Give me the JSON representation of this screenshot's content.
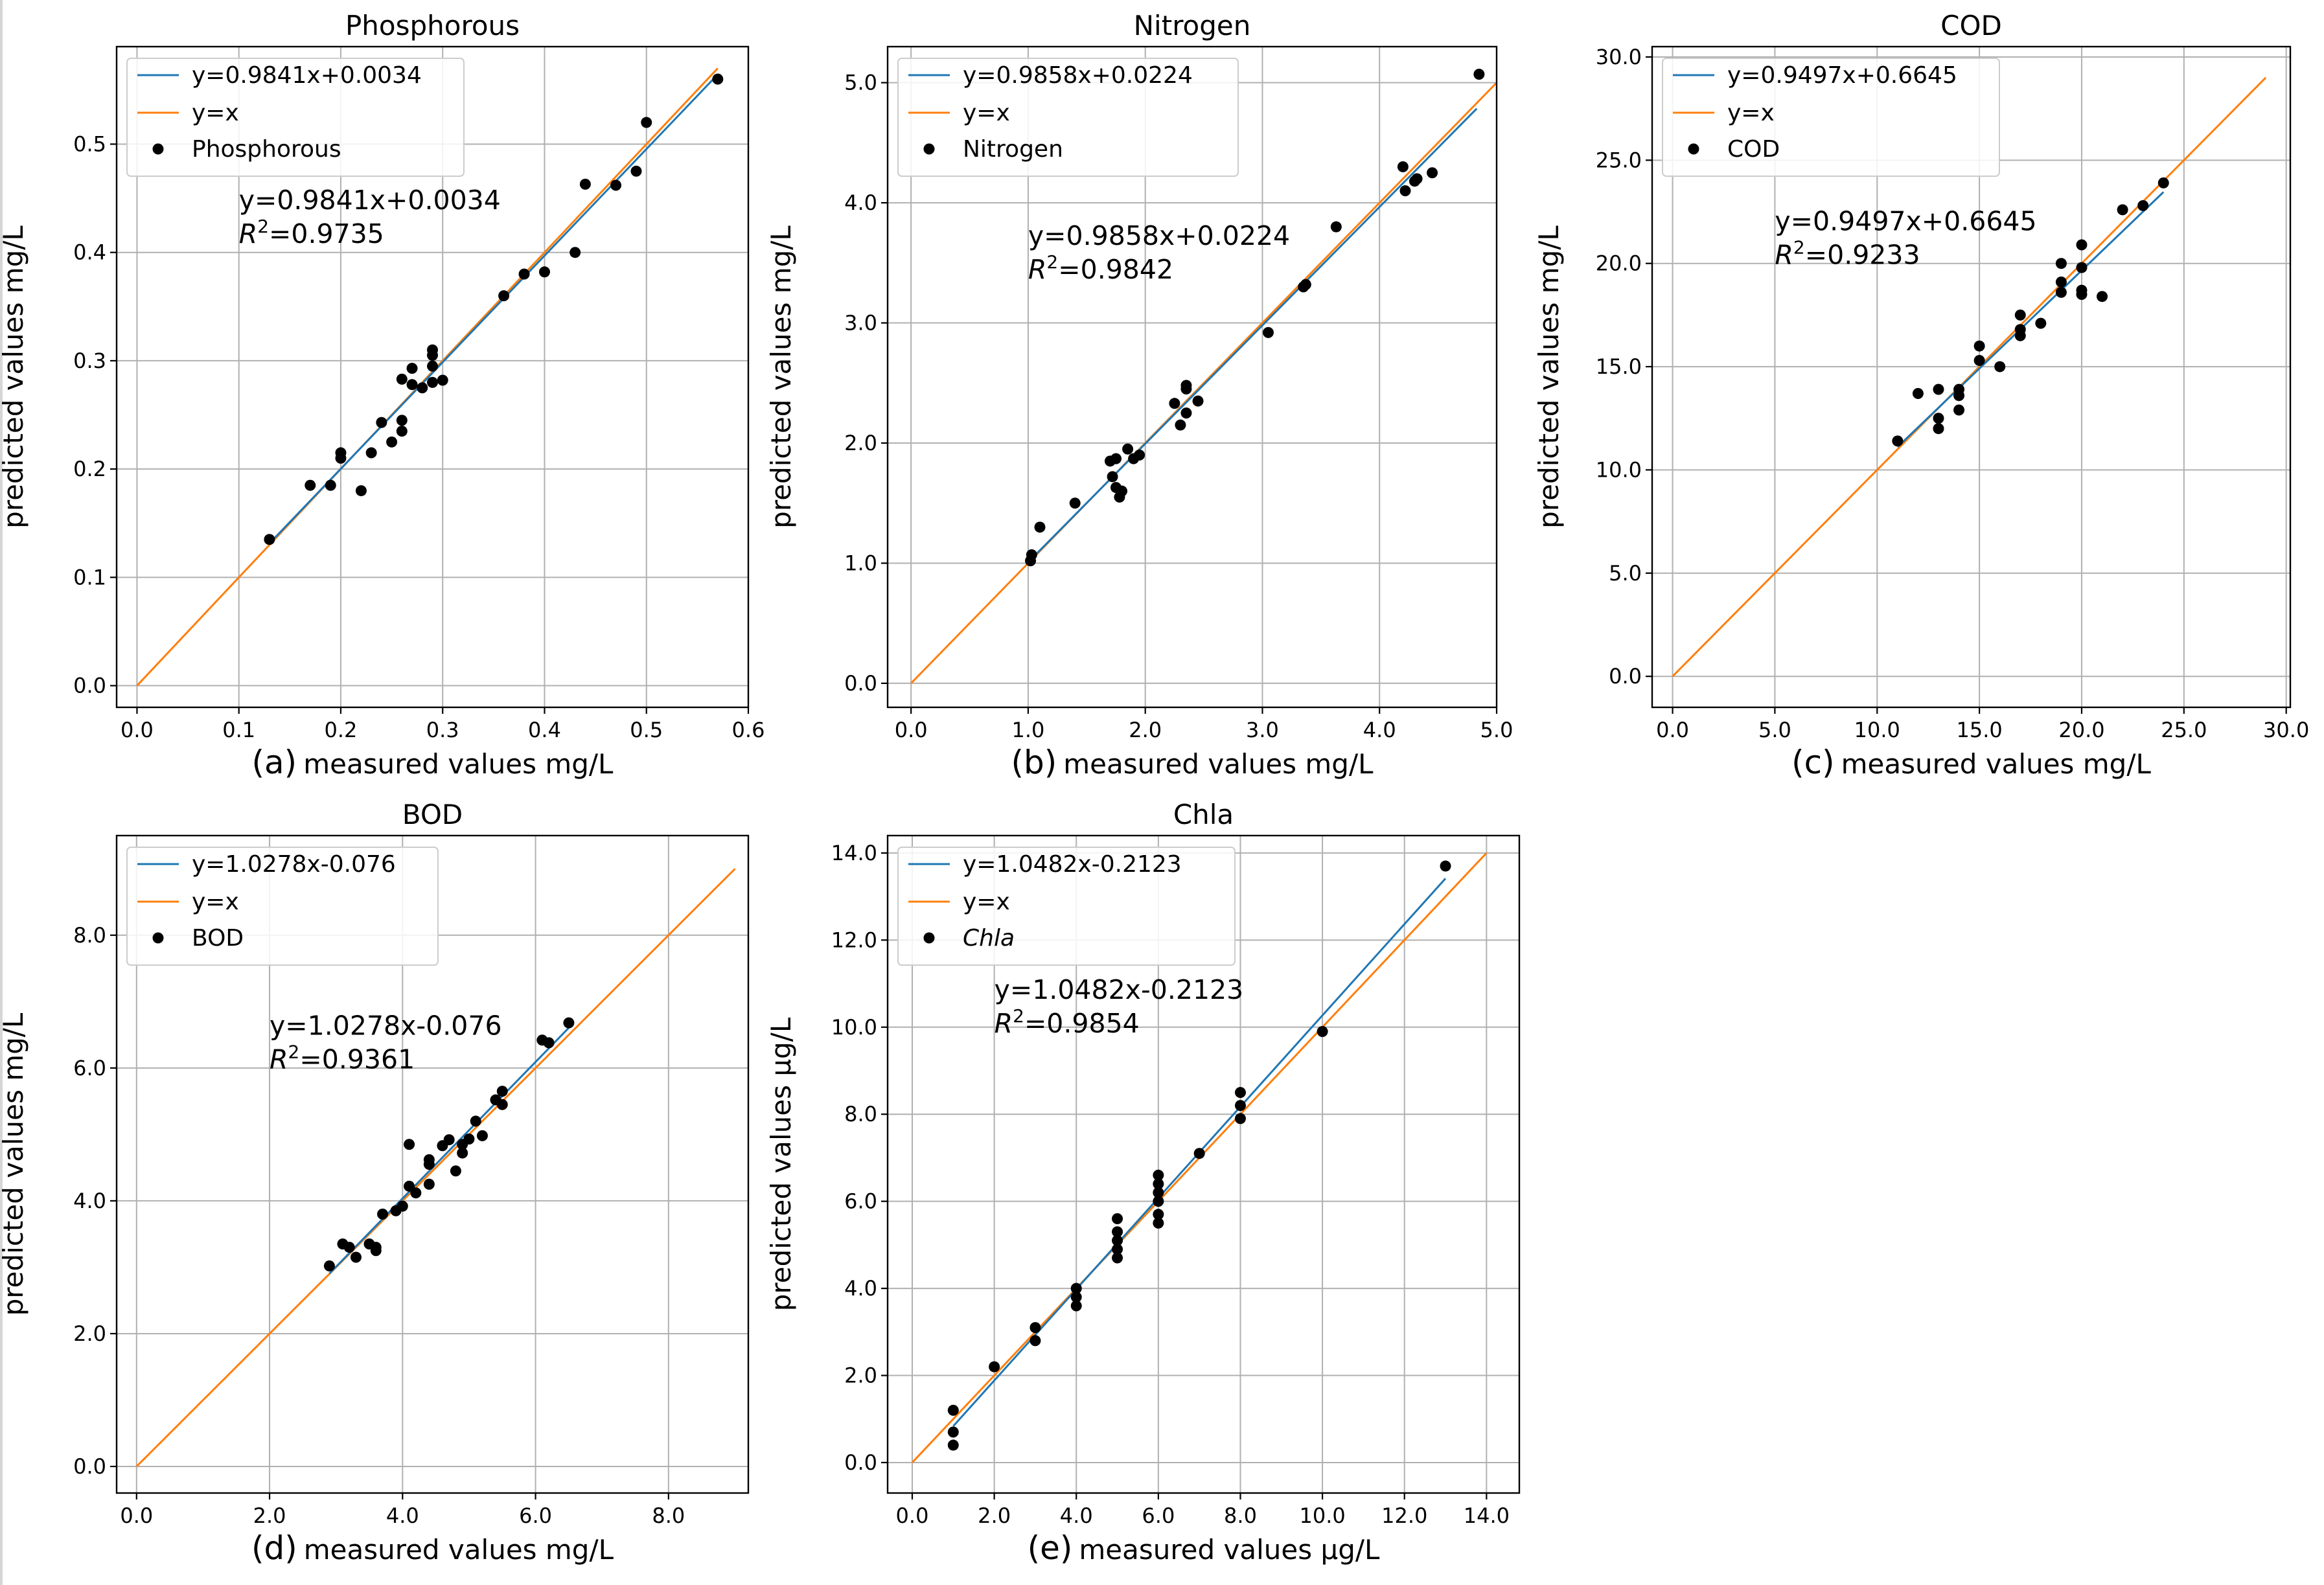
{
  "colors": {
    "fit": "#1f77b4",
    "identity": "#ff7f0e",
    "points": "#000000",
    "grid": "#b0b0b0"
  },
  "chart_data": [
    {
      "type": "scatter",
      "title": "Phosphorous",
      "panel_tag": "(a)",
      "xlabel": "measured values mg/L",
      "ylabel": "predicted values mg/L",
      "xlim": [
        -0.02,
        0.6
      ],
      "ylim": [
        -0.02,
        0.59
      ],
      "xticks": [
        0.0,
        0.1,
        0.2,
        0.3,
        0.4,
        0.5,
        0.6
      ],
      "yticks": [
        0.0,
        0.1,
        0.2,
        0.3,
        0.4,
        0.5
      ],
      "tick_decimals": 1,
      "legend": [
        "y=0.9841x+0.0034",
        "y=x",
        "Phosphorous"
      ],
      "legend_italic_points": false,
      "equation": "y=0.9841x+0.0034",
      "r2_prefix": "R",
      "r2_sup": "2",
      "r2_value": "=0.9735",
      "fit": {
        "slope": 0.9841,
        "intercept": 0.0034,
        "x_range": [
          0.13,
          0.57
        ]
      },
      "identity_range": [
        0,
        0.57
      ],
      "equation_anchor": [
        0.1,
        0.44
      ],
      "points": [
        [
          0.13,
          0.135
        ],
        [
          0.17,
          0.185
        ],
        [
          0.19,
          0.185
        ],
        [
          0.2,
          0.21
        ],
        [
          0.2,
          0.215
        ],
        [
          0.22,
          0.18
        ],
        [
          0.23,
          0.215
        ],
        [
          0.24,
          0.243
        ],
        [
          0.25,
          0.225
        ],
        [
          0.26,
          0.235
        ],
        [
          0.26,
          0.245
        ],
        [
          0.26,
          0.283
        ],
        [
          0.27,
          0.278
        ],
        [
          0.27,
          0.293
        ],
        [
          0.28,
          0.275
        ],
        [
          0.29,
          0.28
        ],
        [
          0.29,
          0.295
        ],
        [
          0.29,
          0.305
        ],
        [
          0.29,
          0.31
        ],
        [
          0.3,
          0.282
        ],
        [
          0.36,
          0.36
        ],
        [
          0.38,
          0.38
        ],
        [
          0.4,
          0.382
        ],
        [
          0.43,
          0.4
        ],
        [
          0.44,
          0.463
        ],
        [
          0.47,
          0.462
        ],
        [
          0.49,
          0.475
        ],
        [
          0.5,
          0.52
        ],
        [
          0.57,
          0.56
        ]
      ]
    },
    {
      "type": "scatter",
      "title": "Nitrogen",
      "panel_tag": "(b)",
      "xlabel": "measured values mg/L",
      "ylabel": "predicted values mg/L",
      "xlim": [
        -0.2,
        5.0
      ],
      "ylim": [
        -0.2,
        5.3
      ],
      "xticks": [
        0.0,
        1.0,
        2.0,
        3.0,
        4.0,
        5.0
      ],
      "yticks": [
        0.0,
        1.0,
        2.0,
        3.0,
        4.0,
        5.0
      ],
      "tick_decimals": 1,
      "legend": [
        "y=0.9858x+0.0224",
        "y=x",
        "Nitrogen"
      ],
      "legend_italic_points": false,
      "equation": "y=0.9858x+0.0224",
      "r2_prefix": "R",
      "r2_sup": "2",
      "r2_value": "=0.9842",
      "fit": {
        "slope": 0.9858,
        "intercept": 0.0224,
        "x_range": [
          1.02,
          4.83
        ]
      },
      "identity_range": [
        0,
        5.0
      ],
      "equation_anchor": [
        1.0,
        3.65
      ],
      "points": [
        [
          1.02,
          1.02
        ],
        [
          1.03,
          1.07
        ],
        [
          1.1,
          1.3
        ],
        [
          1.4,
          1.5
        ],
        [
          1.7,
          1.85
        ],
        [
          1.72,
          1.72
        ],
        [
          1.75,
          1.63
        ],
        [
          1.78,
          1.55
        ],
        [
          1.8,
          1.6
        ],
        [
          1.75,
          1.87
        ],
        [
          1.85,
          1.95
        ],
        [
          1.9,
          1.87
        ],
        [
          1.95,
          1.9
        ],
        [
          2.25,
          2.33
        ],
        [
          2.3,
          2.15
        ],
        [
          2.35,
          2.25
        ],
        [
          2.35,
          2.45
        ],
        [
          2.35,
          2.48
        ],
        [
          2.45,
          2.35
        ],
        [
          3.05,
          2.92
        ],
        [
          3.35,
          3.3
        ],
        [
          3.37,
          3.32
        ],
        [
          3.63,
          3.8
        ],
        [
          4.2,
          4.3
        ],
        [
          4.22,
          4.1
        ],
        [
          4.3,
          4.18
        ],
        [
          4.32,
          4.2
        ],
        [
          4.45,
          4.25
        ],
        [
          4.85,
          5.07
        ]
      ]
    },
    {
      "type": "scatter",
      "title": "COD",
      "panel_tag": "(c)",
      "xlabel": "measured values mg/L",
      "ylabel": "predicted values mg/L",
      "xlim": [
        -1.0,
        30.2
      ],
      "ylim": [
        -1.5,
        30.5
      ],
      "xticks": [
        0.0,
        5.0,
        10.0,
        15.0,
        20.0,
        25.0,
        30.0
      ],
      "yticks": [
        0.0,
        5.0,
        10.0,
        15.0,
        20.0,
        25.0,
        30.0
      ],
      "tick_decimals": 1,
      "legend": [
        "y=0.9497x+0.6645",
        "y=x",
        "COD"
      ],
      "legend_italic_points": false,
      "equation": "y=0.9497x+0.6645",
      "r2_prefix": "R",
      "r2_sup": "2",
      "r2_value": "=0.9233",
      "fit": {
        "slope": 0.9497,
        "intercept": 0.6645,
        "x_range": [
          11.0,
          24.0
        ]
      },
      "identity_range": [
        0,
        29.0
      ],
      "equation_anchor": [
        5.0,
        21.6
      ],
      "points": [
        [
          11,
          11.4
        ],
        [
          12,
          13.7
        ],
        [
          13,
          12
        ],
        [
          13,
          12.5
        ],
        [
          13,
          13.9
        ],
        [
          14,
          12.9
        ],
        [
          14,
          13.6
        ],
        [
          14,
          13.9
        ],
        [
          15,
          15.3
        ],
        [
          15,
          16
        ],
        [
          16,
          15
        ],
        [
          17,
          16.5
        ],
        [
          17,
          16.8
        ],
        [
          17,
          17.5
        ],
        [
          18,
          17.1
        ],
        [
          19,
          18.6
        ],
        [
          19,
          19.1
        ],
        [
          19,
          20
        ],
        [
          20,
          18.5
        ],
        [
          20,
          18.7
        ],
        [
          20,
          19.8
        ],
        [
          20,
          20.9
        ],
        [
          21,
          18.4
        ],
        [
          22,
          22.6
        ],
        [
          23,
          22.8
        ],
        [
          24,
          23.9
        ]
      ]
    },
    {
      "type": "scatter",
      "title": "BOD",
      "panel_tag": "(d)",
      "xlabel": "measured values mg/L",
      "ylabel": "predicted values mg/L",
      "xlim": [
        -0.3,
        9.2
      ],
      "ylim": [
        -0.4,
        9.5
      ],
      "xticks": [
        0.0,
        2.0,
        4.0,
        6.0,
        8.0
      ],
      "yticks": [
        0.0,
        2.0,
        4.0,
        6.0,
        8.0
      ],
      "tick_decimals": 1,
      "legend": [
        "y=1.0278x-0.076",
        "y=x",
        "BOD"
      ],
      "legend_italic_points": false,
      "equation": "y=1.0278x-0.076",
      "r2_prefix": "R",
      "r2_sup": "2",
      "r2_value": "=0.9361",
      "fit": {
        "slope": 1.0278,
        "intercept": -0.076,
        "x_range": [
          2.9,
          6.5
        ]
      },
      "identity_range": [
        0,
        9.0
      ],
      "equation_anchor": [
        2.0,
        6.5
      ],
      "points": [
        [
          2.9,
          3.02
        ],
        [
          3.1,
          3.35
        ],
        [
          3.2,
          3.3
        ],
        [
          3.3,
          3.15
        ],
        [
          3.5,
          3.35
        ],
        [
          3.6,
          3.25
        ],
        [
          3.6,
          3.3
        ],
        [
          3.7,
          3.8
        ],
        [
          3.9,
          3.85
        ],
        [
          4.0,
          3.92
        ],
        [
          4.1,
          4.22
        ],
        [
          4.1,
          4.85
        ],
        [
          4.2,
          4.12
        ],
        [
          4.4,
          4.25
        ],
        [
          4.4,
          4.55
        ],
        [
          4.4,
          4.62
        ],
        [
          4.6,
          4.83
        ],
        [
          4.7,
          4.92
        ],
        [
          4.8,
          4.45
        ],
        [
          4.9,
          4.72
        ],
        [
          4.9,
          4.85
        ],
        [
          5.0,
          4.93
        ],
        [
          5.1,
          5.2
        ],
        [
          5.2,
          4.98
        ],
        [
          5.4,
          5.52
        ],
        [
          5.5,
          5.45
        ],
        [
          5.5,
          5.65
        ],
        [
          6.1,
          6.42
        ],
        [
          6.2,
          6.38
        ],
        [
          6.5,
          6.68
        ]
      ]
    },
    {
      "type": "scatter",
      "title": "Chla",
      "panel_tag": "(e)",
      "xlabel": "measured values μg/L",
      "xlabel_italic_part": "μ",
      "ylabel": "predicted values μg/L",
      "xlim": [
        -0.6,
        14.8
      ],
      "ylim": [
        -0.7,
        14.4
      ],
      "xticks": [
        0.0,
        2.0,
        4.0,
        6.0,
        8.0,
        10.0,
        12.0,
        14.0
      ],
      "yticks": [
        0.0,
        2.0,
        4.0,
        6.0,
        8.0,
        10.0,
        12.0,
        14.0
      ],
      "tick_decimals": 1,
      "legend": [
        "y=1.0482x-0.2123",
        "y=x",
        "Chla"
      ],
      "legend_italic_points": true,
      "equation": "y=1.0482x-0.2123",
      "r2_prefix": "R",
      "r2_sup": "2",
      "r2_value": "=0.9854",
      "fit": {
        "slope": 1.0482,
        "intercept": -0.2123,
        "x_range": [
          1.0,
          13.0
        ]
      },
      "identity_range": [
        0,
        14.0
      ],
      "equation_anchor": [
        2.0,
        10.65
      ],
      "points": [
        [
          1,
          0.4
        ],
        [
          1,
          0.7
        ],
        [
          1,
          1.2
        ],
        [
          2,
          2.2
        ],
        [
          3,
          2.8
        ],
        [
          3,
          3.1
        ],
        [
          4,
          3.6
        ],
        [
          4,
          3.8
        ],
        [
          4,
          4.0
        ],
        [
          5,
          4.7
        ],
        [
          5,
          4.9
        ],
        [
          5,
          5.1
        ],
        [
          5,
          5.3
        ],
        [
          5,
          5.6
        ],
        [
          6,
          5.5
        ],
        [
          6,
          5.7
        ],
        [
          6,
          6.0
        ],
        [
          6,
          6.2
        ],
        [
          6,
          6.4
        ],
        [
          6,
          6.6
        ],
        [
          7,
          7.1
        ],
        [
          8,
          7.9
        ],
        [
          8,
          8.2
        ],
        [
          8,
          8.5
        ],
        [
          10,
          9.9
        ],
        [
          13,
          13.7
        ]
      ]
    }
  ]
}
